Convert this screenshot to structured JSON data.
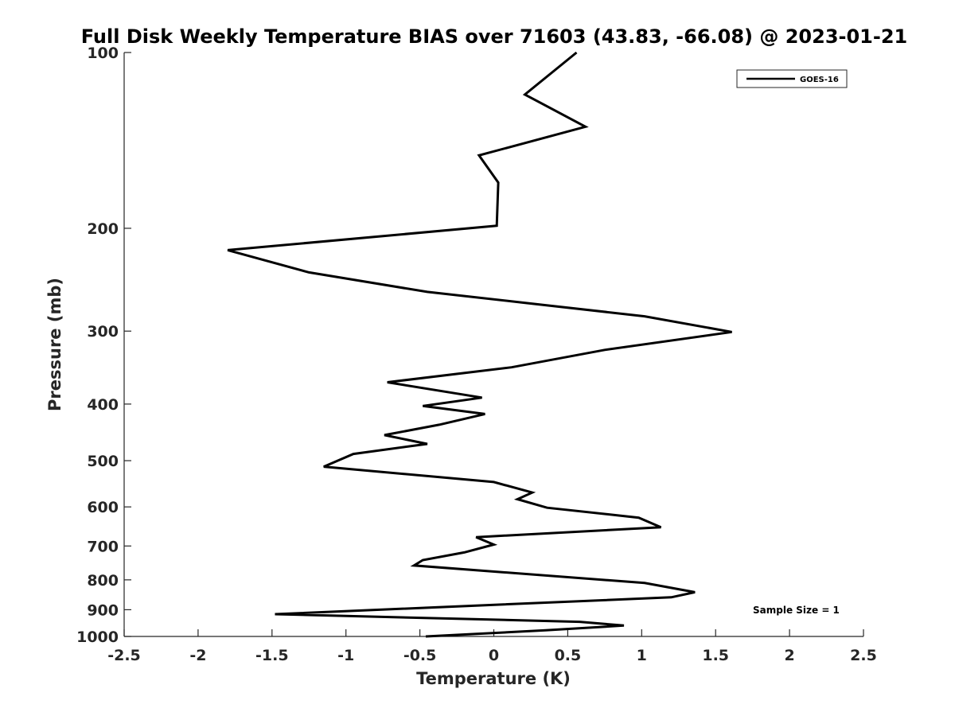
{
  "chart_data": {
    "type": "line",
    "title": "Full Disk Weekly Temperature BIAS over 71603 (43.83, -66.08) @ 2023-01-21",
    "xlabel": "Temperature (K)",
    "ylabel": "Pressure (mb)",
    "xlim": [
      -2.5,
      2.5
    ],
    "ylim": [
      100,
      1000
    ],
    "y_scale": "log",
    "y_reversed": true,
    "grid": false,
    "x_ticks": [
      -2.5,
      -2,
      -1.5,
      -1,
      -0.5,
      0,
      0.5,
      1,
      1.5,
      2,
      2.5
    ],
    "x_tick_labels": [
      "-2.5",
      "-2",
      "-1.5",
      "-1",
      "-0.5",
      "0",
      "0.5",
      "1",
      "1.5",
      "2",
      "2.5"
    ],
    "y_ticks": [
      100,
      200,
      300,
      400,
      500,
      600,
      700,
      800,
      900,
      1000
    ],
    "y_tick_labels": [
      "100",
      "200",
      "300",
      "400",
      "500",
      "600",
      "700",
      "800",
      "900",
      "1000"
    ],
    "legend": {
      "position": "top-right",
      "entries": [
        "GOES-16"
      ]
    },
    "annotation": "Sample Size = 1",
    "series": [
      {
        "name": "GOES-16",
        "color": "#000000",
        "points": [
          [
            0.56,
            100
          ],
          [
            0.21,
            118
          ],
          [
            0.62,
            134
          ],
          [
            -0.1,
            150
          ],
          [
            0.03,
            167
          ],
          [
            0.02,
            198
          ],
          [
            -1.8,
            218
          ],
          [
            -1.25,
            238
          ],
          [
            -0.45,
            257
          ],
          [
            1.02,
            283
          ],
          [
            1.61,
            301
          ],
          [
            0.75,
            323
          ],
          [
            0.12,
            346
          ],
          [
            -0.72,
            367
          ],
          [
            -0.08,
            390
          ],
          [
            -0.48,
            403
          ],
          [
            -0.06,
            416
          ],
          [
            -0.37,
            434
          ],
          [
            -0.74,
            452
          ],
          [
            -0.45,
            468
          ],
          [
            -0.95,
            487
          ],
          [
            -1.15,
            512
          ],
          [
            0.0,
            544
          ],
          [
            0.26,
            567
          ],
          [
            0.16,
            582
          ],
          [
            0.36,
            602
          ],
          [
            0.98,
            626
          ],
          [
            1.13,
            650
          ],
          [
            -0.12,
            676
          ],
          [
            0.0,
            696
          ],
          [
            -0.2,
            718
          ],
          [
            -0.48,
            740
          ],
          [
            -0.54,
            756
          ],
          [
            1.02,
            810
          ],
          [
            1.36,
            840
          ],
          [
            1.2,
            857
          ],
          [
            -1.48,
            916
          ],
          [
            0.58,
            944
          ],
          [
            0.88,
            958
          ],
          [
            0.35,
            976
          ],
          [
            -0.46,
            1000
          ]
        ]
      }
    ]
  }
}
